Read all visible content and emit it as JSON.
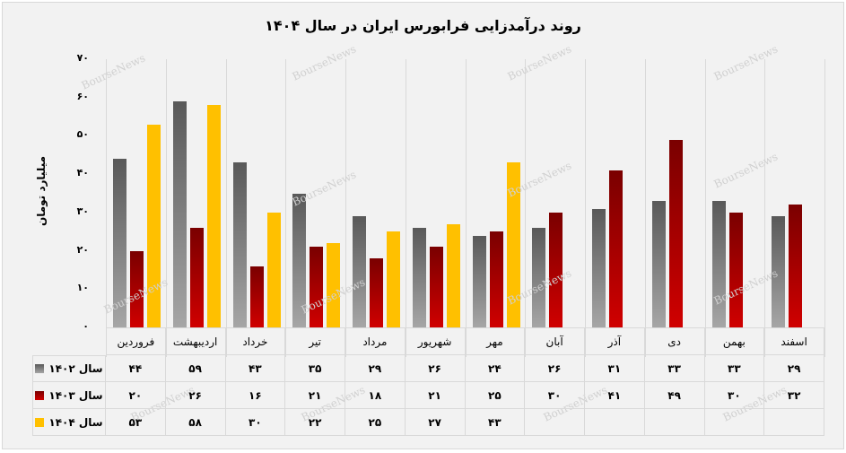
{
  "chart_data": {
    "type": "bar",
    "title": "روند درآمدزایی فرابورس ایران در سال ۱۴۰۴",
    "xlabel": "",
    "ylabel": "میلیارد تومان",
    "ylim": [
      0,
      70
    ],
    "yticks": [
      "۰",
      "۱۰",
      "۲۰",
      "۳۰",
      "۴۰",
      "۵۰",
      "۶۰",
      "۷۰"
    ],
    "categories": [
      "فروردین",
      "اردیبهشت",
      "خرداد",
      "تیر",
      "مرداد",
      "شهریور",
      "مهر",
      "آبان",
      "آذر",
      "دی",
      "بهمن",
      "اسفند"
    ],
    "series": [
      {
        "name": "سال ۱۴۰۲",
        "color": "#7f7f7f",
        "values": [
          44,
          59,
          43,
          35,
          29,
          26,
          24,
          26,
          31,
          33,
          33,
          29
        ],
        "labels": [
          "۴۴",
          "۵۹",
          "۴۳",
          "۳۵",
          "۲۹",
          "۲۶",
          "۲۴",
          "۲۶",
          "۳۱",
          "۳۳",
          "۳۳",
          "۲۹"
        ]
      },
      {
        "name": "سال ۱۴۰۳",
        "color": "#c00000",
        "values": [
          20,
          26,
          16,
          21,
          18,
          21,
          25,
          30,
          41,
          49,
          30,
          32
        ],
        "labels": [
          "۲۰",
          "۲۶",
          "۱۶",
          "۲۱",
          "۱۸",
          "۲۱",
          "۲۵",
          "۳۰",
          "۴۱",
          "۴۹",
          "۳۰",
          "۳۲"
        ]
      },
      {
        "name": "سال ۱۴۰۴",
        "color": "#ffc000",
        "values": [
          53,
          58,
          30,
          22,
          25,
          27,
          43,
          null,
          null,
          null,
          null,
          null
        ],
        "labels": [
          "۵۳",
          "۵۸",
          "۳۰",
          "۲۲",
          "۲۵",
          "۲۷",
          "۴۳",
          "",
          "",
          "",
          "",
          ""
        ]
      }
    ],
    "grid": "vertical category separators",
    "legend_position": "data table (left)",
    "watermark": "BourseNews"
  }
}
